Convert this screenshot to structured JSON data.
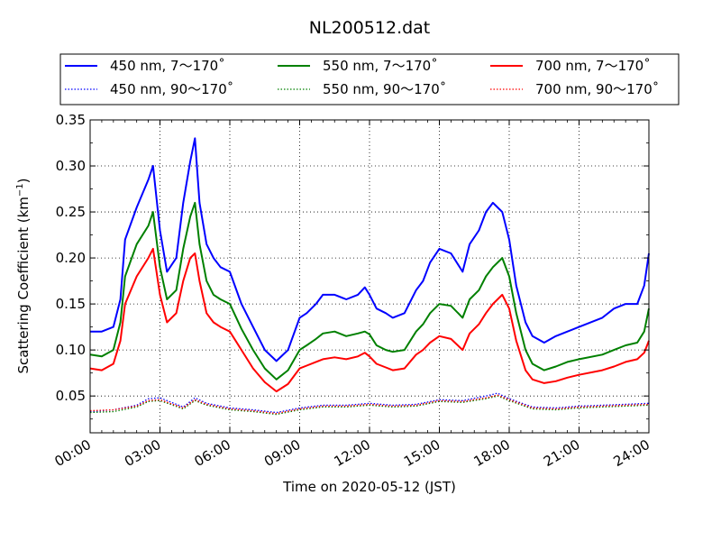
{
  "chart_data": {
    "type": "line",
    "title": "NL200512.dat",
    "xlabel": "Time on 2020-05-12 (JST)",
    "ylabel_main": "Scattering Coefficient (km",
    "ylabel_sup": "−1",
    "ylabel_close": ")",
    "xlim": [
      0,
      24
    ],
    "ylim": [
      0.01,
      0.35
    ],
    "x_ticks": [
      {
        "value": 0,
        "label": "00:00"
      },
      {
        "value": 3,
        "label": "03:00"
      },
      {
        "value": 6,
        "label": "06:00"
      },
      {
        "value": 9,
        "label": "09:00"
      },
      {
        "value": 12,
        "label": "12:00"
      },
      {
        "value": 15,
        "label": "15:00"
      },
      {
        "value": 18,
        "label": "18:00"
      },
      {
        "value": 21,
        "label": "21:00"
      },
      {
        "value": 24,
        "label": "24:00"
      }
    ],
    "y_ticks": [
      {
        "value": 0.05,
        "label": "0.05"
      },
      {
        "value": 0.1,
        "label": "0.10"
      },
      {
        "value": 0.15,
        "label": "0.15"
      },
      {
        "value": 0.2,
        "label": "0.20"
      },
      {
        "value": 0.25,
        "label": "0.25"
      },
      {
        "value": 0.3,
        "label": "0.30"
      },
      {
        "value": 0.35,
        "label": "0.35"
      }
    ],
    "grid": true,
    "legend_position": "top",
    "series": [
      {
        "name": "450 nm, 7～170˚",
        "color": "#0000ff",
        "style": "solid",
        "x": [
          0,
          0.5,
          1,
          1.3,
          1.5,
          2,
          2.5,
          2.7,
          3,
          3.3,
          3.7,
          4,
          4.3,
          4.5,
          4.7,
          5,
          5.3,
          5.6,
          6,
          6.5,
          7,
          7.5,
          8,
          8.5,
          9,
          9.3,
          9.7,
          10,
          10.5,
          11,
          11.5,
          11.8,
          12,
          12.3,
          12.7,
          13,
          13.5,
          14,
          14.3,
          14.6,
          15,
          15.5,
          16,
          16.3,
          16.7,
          17,
          17.3,
          17.7,
          18,
          18.3,
          18.7,
          19,
          19.5,
          20,
          20.5,
          21,
          22,
          22.5,
          23,
          23.5,
          23.8,
          24
        ],
        "y": [
          0.12,
          0.12,
          0.125,
          0.155,
          0.22,
          0.255,
          0.285,
          0.3,
          0.23,
          0.185,
          0.2,
          0.26,
          0.305,
          0.33,
          0.26,
          0.215,
          0.2,
          0.19,
          0.185,
          0.15,
          0.125,
          0.1,
          0.088,
          0.1,
          0.135,
          0.14,
          0.15,
          0.16,
          0.16,
          0.155,
          0.16,
          0.168,
          0.16,
          0.145,
          0.14,
          0.135,
          0.14,
          0.165,
          0.175,
          0.195,
          0.21,
          0.205,
          0.185,
          0.215,
          0.23,
          0.25,
          0.26,
          0.25,
          0.22,
          0.17,
          0.13,
          0.115,
          0.108,
          0.115,
          0.12,
          0.125,
          0.135,
          0.145,
          0.15,
          0.15,
          0.17,
          0.205
        ]
      },
      {
        "name": "550 nm, 7～170˚",
        "color": "#008000",
        "style": "solid",
        "x": [
          0,
          0.5,
          1,
          1.3,
          1.5,
          2,
          2.5,
          2.7,
          3,
          3.3,
          3.7,
          4,
          4.3,
          4.5,
          4.7,
          5,
          5.3,
          5.6,
          6,
          6.5,
          7,
          7.5,
          8,
          8.5,
          9,
          9.3,
          9.7,
          10,
          10.5,
          11,
          11.5,
          11.8,
          12,
          12.3,
          12.7,
          13,
          13.5,
          14,
          14.3,
          14.6,
          15,
          15.5,
          16,
          16.3,
          16.7,
          17,
          17.3,
          17.7,
          18,
          18.3,
          18.7,
          19,
          19.5,
          20,
          20.5,
          21,
          22,
          22.5,
          23,
          23.5,
          23.8,
          24
        ],
        "y": [
          0.095,
          0.093,
          0.1,
          0.13,
          0.18,
          0.215,
          0.235,
          0.25,
          0.19,
          0.155,
          0.165,
          0.21,
          0.245,
          0.26,
          0.215,
          0.175,
          0.16,
          0.155,
          0.15,
          0.123,
          0.1,
          0.08,
          0.068,
          0.078,
          0.1,
          0.105,
          0.112,
          0.118,
          0.12,
          0.115,
          0.118,
          0.12,
          0.117,
          0.105,
          0.1,
          0.098,
          0.1,
          0.12,
          0.128,
          0.14,
          0.15,
          0.148,
          0.135,
          0.155,
          0.165,
          0.18,
          0.19,
          0.2,
          0.18,
          0.14,
          0.1,
          0.085,
          0.078,
          0.082,
          0.087,
          0.09,
          0.095,
          0.1,
          0.105,
          0.108,
          0.12,
          0.145
        ]
      },
      {
        "name": "700 nm, 7～170˚",
        "color": "#ff0000",
        "style": "solid",
        "x": [
          0,
          0.5,
          1,
          1.3,
          1.5,
          2,
          2.5,
          2.7,
          3,
          3.3,
          3.7,
          4,
          4.3,
          4.5,
          4.7,
          5,
          5.3,
          5.6,
          6,
          6.5,
          7,
          7.5,
          8,
          8.5,
          9,
          9.3,
          9.7,
          10,
          10.5,
          11,
          11.5,
          11.8,
          12,
          12.3,
          12.7,
          13,
          13.5,
          14,
          14.3,
          14.6,
          15,
          15.5,
          16,
          16.3,
          16.7,
          17,
          17.3,
          17.7,
          18,
          18.3,
          18.7,
          19,
          19.5,
          20,
          20.5,
          21,
          22,
          22.5,
          23,
          23.5,
          23.8,
          24
        ],
        "y": [
          0.08,
          0.078,
          0.085,
          0.11,
          0.15,
          0.18,
          0.2,
          0.21,
          0.16,
          0.13,
          0.14,
          0.175,
          0.2,
          0.205,
          0.175,
          0.14,
          0.13,
          0.125,
          0.12,
          0.1,
          0.08,
          0.065,
          0.055,
          0.063,
          0.08,
          0.083,
          0.087,
          0.09,
          0.092,
          0.09,
          0.093,
          0.097,
          0.093,
          0.085,
          0.081,
          0.078,
          0.08,
          0.095,
          0.1,
          0.108,
          0.115,
          0.112,
          0.1,
          0.118,
          0.128,
          0.14,
          0.15,
          0.16,
          0.145,
          0.11,
          0.078,
          0.068,
          0.064,
          0.066,
          0.07,
          0.073,
          0.078,
          0.082,
          0.087,
          0.09,
          0.097,
          0.11
        ]
      },
      {
        "name": "450 nm, 90～170˚",
        "color": "#0000ff",
        "style": "dotted",
        "x": [
          0,
          1,
          2,
          2.5,
          3,
          4,
          4.5,
          5,
          6,
          7,
          8,
          9,
          10,
          11,
          12,
          13,
          14,
          15,
          16,
          17,
          17.5,
          18,
          19,
          20,
          21,
          22,
          23,
          24
        ],
        "y": [
          0.033,
          0.035,
          0.04,
          0.047,
          0.048,
          0.038,
          0.048,
          0.042,
          0.037,
          0.035,
          0.032,
          0.037,
          0.04,
          0.04,
          0.042,
          0.04,
          0.041,
          0.046,
          0.045,
          0.05,
          0.053,
          0.047,
          0.038,
          0.037,
          0.039,
          0.04,
          0.041,
          0.042
        ]
      },
      {
        "name": "550 nm, 90～170˚",
        "color": "#008000",
        "style": "dotted",
        "x": [
          0,
          1,
          2,
          2.5,
          3,
          4,
          4.5,
          5,
          6,
          7,
          8,
          9,
          10,
          11,
          12,
          13,
          14,
          15,
          16,
          17,
          17.5,
          18,
          19,
          20,
          21,
          22,
          23,
          24
        ],
        "y": [
          0.032,
          0.033,
          0.038,
          0.044,
          0.045,
          0.036,
          0.045,
          0.04,
          0.035,
          0.033,
          0.03,
          0.035,
          0.038,
          0.038,
          0.04,
          0.038,
          0.039,
          0.044,
          0.043,
          0.047,
          0.05,
          0.045,
          0.036,
          0.035,
          0.037,
          0.038,
          0.039,
          0.04
        ]
      },
      {
        "name": "700 nm, 90～170˚",
        "color": "#ff0000",
        "style": "dotted",
        "x": [
          0,
          1,
          2,
          2.5,
          3,
          4,
          4.5,
          5,
          6,
          7,
          8,
          9,
          10,
          11,
          12,
          13,
          14,
          15,
          16,
          17,
          17.5,
          18,
          19,
          20,
          21,
          22,
          23,
          24
        ],
        "y": [
          0.034,
          0.035,
          0.039,
          0.045,
          0.046,
          0.037,
          0.046,
          0.041,
          0.036,
          0.034,
          0.031,
          0.036,
          0.039,
          0.039,
          0.041,
          0.039,
          0.04,
          0.045,
          0.044,
          0.048,
          0.051,
          0.046,
          0.037,
          0.036,
          0.038,
          0.039,
          0.04,
          0.041
        ]
      }
    ]
  }
}
